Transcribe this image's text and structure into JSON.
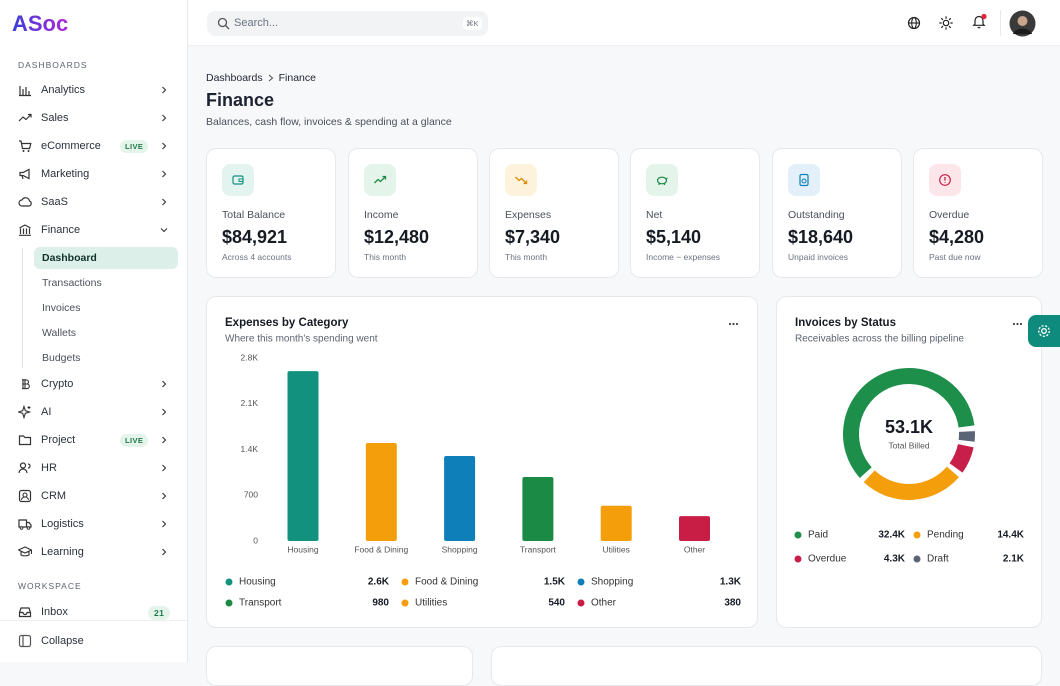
{
  "sidebar": {
    "brand": "ASoc",
    "sections": [
      {
        "title": "DASHBOARDS",
        "items": [
          {
            "label": "Analytics"
          },
          {
            "label": "Sales"
          },
          {
            "label": "eCommerce",
            "badge": "LIVE"
          },
          {
            "label": "Marketing"
          },
          {
            "label": "SaaS"
          },
          {
            "label": "Finance",
            "children": [
              "Dashboard",
              "Transactions",
              "Invoices",
              "Wallets",
              "Budgets"
            ]
          },
          {
            "label": "Crypto"
          },
          {
            "label": "AI"
          },
          {
            "label": "Project",
            "badge": "LIVE"
          },
          {
            "label": "HR"
          },
          {
            "label": "CRM"
          },
          {
            "label": "Logistics"
          },
          {
            "label": "Learning"
          }
        ]
      },
      {
        "title": "WORKSPACE",
        "items": [
          {
            "label": "Inbox",
            "badge": "21"
          }
        ]
      }
    ],
    "collapse": "Collapse"
  },
  "topbar": {
    "search": "Search...",
    "shortcut": "⌘K"
  },
  "header": {
    "breadcrumb": [
      "Dashboards",
      "Finance"
    ],
    "title": "Finance",
    "subtitle": "Balances, cash flow, invoices & spending at a glance"
  },
  "kpis": [
    {
      "label": "Total Balance",
      "value": "$84,921",
      "note": "Across 4 accounts"
    },
    {
      "label": "Income",
      "value": "$12,480",
      "note": "This month"
    },
    {
      "label": "Expenses",
      "value": "$7,340",
      "note": "This month"
    },
    {
      "label": "Net",
      "value": "$5,140",
      "note": "Income − expenses"
    },
    {
      "label": "Outstanding",
      "value": "$18,640",
      "note": "Unpaid invoices"
    },
    {
      "label": "Overdue",
      "value": "$4,280",
      "note": "Past due now"
    }
  ],
  "chart_data": [
    {
      "type": "bar",
      "title": "Expenses by Category",
      "subtitle": "Where this month's spending went",
      "categories": [
        "Housing",
        "Food & Dining",
        "Shopping",
        "Transport",
        "Utilities",
        "Other"
      ],
      "values": [
        2600,
        1500,
        1300,
        980,
        540,
        380
      ],
      "value_labels": [
        "2.6K",
        "1.5K",
        "1.3K",
        "980",
        "540",
        "380"
      ],
      "colors": [
        "#13917f",
        "#f59e0b",
        "#0e7fb8",
        "#1b8a44",
        "#f59e0b",
        "#c81e45"
      ],
      "ylim": [
        0,
        2800
      ],
      "yticks": [
        0,
        700,
        {
          "value": 1400,
          "label": "1.4K"
        },
        {
          "value": 2100,
          "label": "2.1K"
        },
        {
          "value": 2800,
          "label": "2.8K"
        }
      ],
      "grid": false
    },
    {
      "type": "donut",
      "title": "Invoices by Status",
      "subtitle": "Receivables across the billing pipeline",
      "center_value": "53.1K",
      "center_label": "Total Billed",
      "categories": [
        "Paid",
        "Pending",
        "Overdue",
        "Draft"
      ],
      "values": [
        32400,
        14400,
        4300,
        2100
      ],
      "value_labels": [
        "32.4K",
        "14.4K",
        "4.3K",
        "2.1K"
      ],
      "colors": [
        "#1e8f4a",
        "#f59e0b",
        "#c81e4a",
        "#5b6475"
      ]
    }
  ]
}
